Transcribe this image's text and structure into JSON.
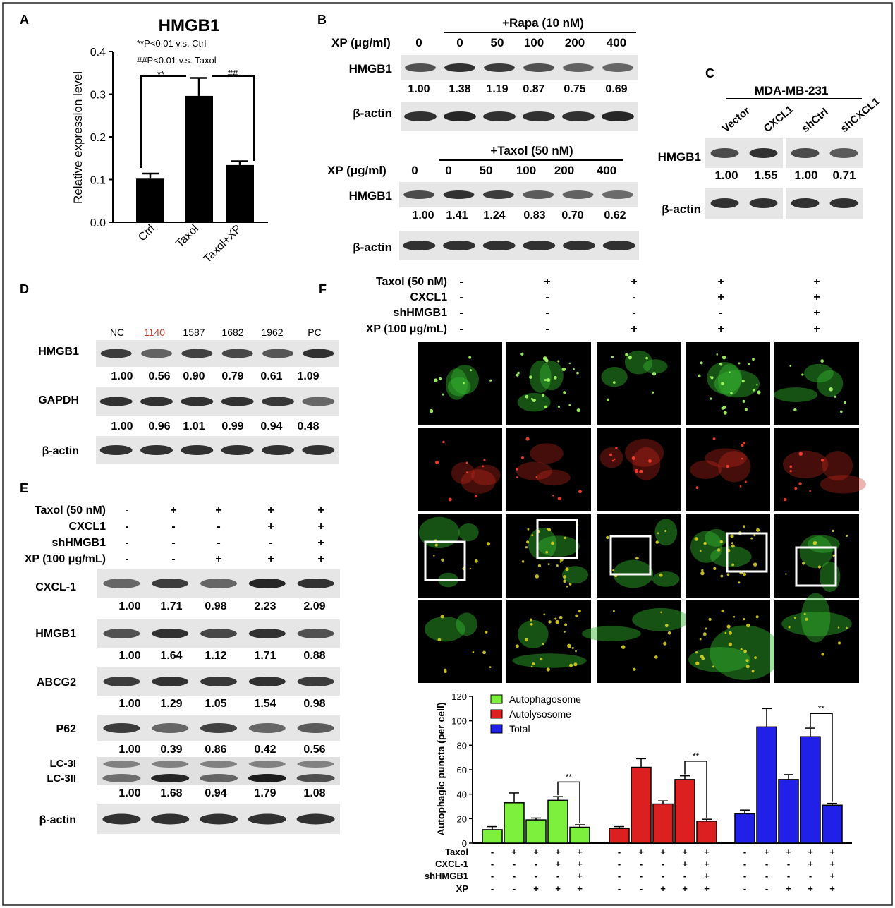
{
  "frame_color": "#222222",
  "panel_letters": [
    "A",
    "B",
    "C",
    "D",
    "E",
    "F"
  ],
  "panelA": {
    "chart_data": {
      "type": "bar",
      "title": "HMGB1",
      "ylabel": "Relative expression level",
      "categories": [
        "Ctrl",
        "Taxol",
        "Taxol+XP"
      ],
      "values": [
        0.102,
        0.296,
        0.134
      ],
      "errors": [
        0.012,
        0.042,
        0.009
      ],
      "ylim": [
        0,
        0.4
      ],
      "yticks": [
        "0.0",
        "0.1",
        "0.2",
        "0.3",
        "0.4"
      ],
      "sig_labels": [
        "**",
        "##"
      ],
      "note1": "**P<0.01 v.s. Ctrl",
      "note2": "##P<0.01 v.s. Taxol",
      "bar_color": "#000000"
    }
  },
  "panelB": {
    "top": {
      "treatment": "+Rapa (10 nM)",
      "dose_label": "XP (μg/ml)",
      "doses": [
        "0",
        "0",
        "50",
        "100",
        "200",
        "400"
      ],
      "band_labels": [
        "HMGB1",
        "β-actin"
      ],
      "quant": [
        "1.00",
        "1.38",
        "1.19",
        "0.87",
        "0.75",
        "0.69"
      ]
    },
    "bottom": {
      "treatment": "+Taxol (50 nM)",
      "dose_label": "XP (μg/ml)",
      "doses": [
        "0",
        "0",
        "50",
        "100",
        "200",
        "400"
      ],
      "band_labels": [
        "HMGB1",
        "β-actin"
      ],
      "quant": [
        "1.00",
        "1.41",
        "1.24",
        "0.83",
        "0.70",
        "0.62"
      ]
    }
  },
  "panelC": {
    "cell_line": "MDA-MB-231",
    "lanes": [
      "Vector",
      "CXCL1",
      "shCtrl",
      "shCXCL1"
    ],
    "band_labels": [
      "HMGB1",
      "β-actin"
    ],
    "quant": [
      "1.00",
      "1.55",
      "1.00",
      "0.71"
    ]
  },
  "panelD": {
    "lanes": [
      "NC",
      "1140",
      "1587",
      "1682",
      "1962",
      "PC"
    ],
    "highlight_color": "#c0392b",
    "band_labels": [
      "HMGB1",
      "GAPDH",
      "β-actin"
    ],
    "quant_hmgb1": [
      "1.00",
      "0.56",
      "0.90",
      "0.79",
      "0.61",
      "1.09"
    ],
    "quant_gapdh": [
      "1.00",
      "0.96",
      "1.01",
      "0.99",
      "0.94",
      "0.48"
    ]
  },
  "panelE": {
    "conditions": [
      {
        "label": "Taxol (50 nM)",
        "marks": [
          "-",
          "+",
          "+",
          "+",
          "+"
        ]
      },
      {
        "label": "CXCL1",
        "marks": [
          "-",
          "-",
          "-",
          "+",
          "+"
        ]
      },
      {
        "label": "shHMGB1",
        "marks": [
          "-",
          "-",
          "-",
          "-",
          "+"
        ]
      },
      {
        "label": "XP (100 μg/mL)",
        "marks": [
          "-",
          "-",
          "+",
          "+",
          "+"
        ]
      }
    ],
    "blots": [
      {
        "label": "CXCL-1",
        "quant": [
          "1.00",
          "1.71",
          "0.98",
          "2.23",
          "2.09"
        ]
      },
      {
        "label": "HMGB1",
        "quant": [
          "1.00",
          "1.64",
          "1.12",
          "1.71",
          "0.88"
        ]
      },
      {
        "label": "ABCG2",
        "quant": [
          "1.00",
          "1.29",
          "1.05",
          "1.54",
          "0.98"
        ]
      },
      {
        "label": "P62",
        "quant": [
          "1.00",
          "0.39",
          "0.86",
          "0.42",
          "0.56"
        ]
      }
    ],
    "lc3_labels": [
      "LC-3I",
      "LC-3II"
    ],
    "lc3_quant": [
      "1.00",
      "1.68",
      "0.94",
      "1.79",
      "1.08"
    ],
    "actin_label": "β-actin"
  },
  "panelF": {
    "conditions": [
      {
        "label": "Taxol (50 nM)",
        "marks": [
          "-",
          "+",
          "+",
          "+",
          "+"
        ]
      },
      {
        "label": "CXCL1",
        "marks": [
          "-",
          "-",
          "-",
          "+",
          "+"
        ]
      },
      {
        "label": "shHMGB1",
        "marks": [
          "-",
          "-",
          "-",
          "-",
          "+"
        ]
      },
      {
        "label": "XP (100 μg/mL)",
        "marks": [
          "-",
          "-",
          "+",
          "+",
          "+"
        ]
      }
    ],
    "micrograph_colors": {
      "green": "#33b52e",
      "red": "#c8281e",
      "merge": "#d8d020"
    },
    "chart_data": {
      "type": "bar",
      "ylabel": "Autophagic puncta (per cell)",
      "ylim": [
        0,
        120
      ],
      "yticks": [
        "0",
        "20",
        "40",
        "60",
        "80",
        "100",
        "120"
      ],
      "series": [
        {
          "name": "Autophagosome",
          "color": "#7cf03c",
          "values": [
            11,
            33,
            19,
            35,
            13
          ],
          "errors": [
            2.5,
            8,
            1.5,
            3,
            2
          ]
        },
        {
          "name": "Autolysosome",
          "color": "#dc2020",
          "values": [
            12,
            62,
            32,
            52,
            18
          ],
          "errors": [
            1.5,
            7,
            2.5,
            3,
            1.5
          ]
        },
        {
          "name": "Total",
          "color": "#2020e8",
          "values": [
            24,
            95,
            52,
            87,
            31
          ],
          "errors": [
            3,
            15,
            4,
            7,
            1.5
          ]
        }
      ],
      "sig_label": "**",
      "condition_rows": [
        {
          "label": "Taxol",
          "marks": [
            "-",
            "+",
            "+",
            "+",
            "+"
          ]
        },
        {
          "label": "CXCL-1",
          "marks": [
            "-",
            "-",
            "-",
            "+",
            "+"
          ]
        },
        {
          "label": "shHMGB1",
          "marks": [
            "-",
            "-",
            "-",
            "-",
            "+"
          ]
        },
        {
          "label": "XP",
          "marks": [
            "-",
            "-",
            "+",
            "+",
            "+"
          ]
        }
      ]
    }
  }
}
